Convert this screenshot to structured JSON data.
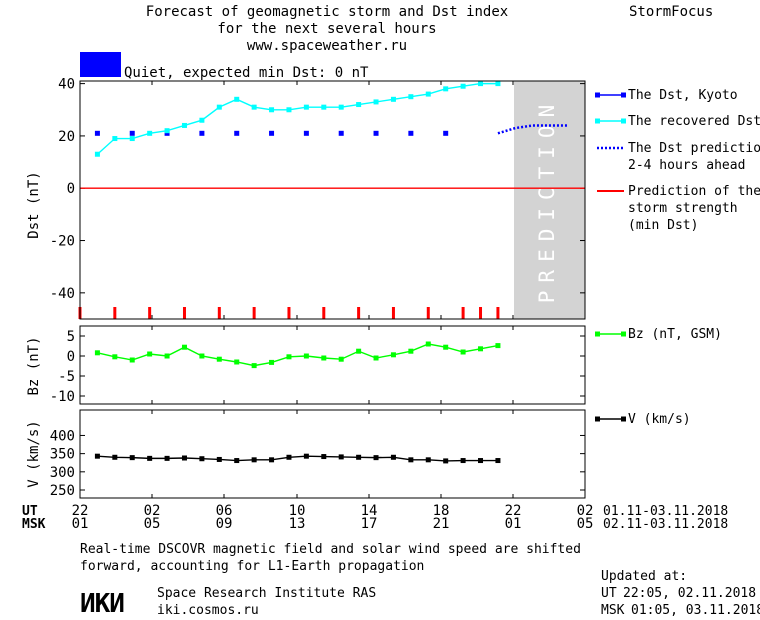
{
  "header": {
    "title_lines": [
      "Forecast of geomagnetic storm and Dst index",
      "for the next several hours",
      "www.spaceweather.ru"
    ],
    "brand": "StormFocus"
  },
  "status": {
    "label": "Quiet, expected min Dst: 0 nT",
    "color": "#0000ff"
  },
  "prediction_label": "PREDICTION",
  "legends": {
    "dst": [
      {
        "key": "kyoto",
        "lines": [
          "The Dst, Kyoto"
        ],
        "color": "#0000ff",
        "style": "square-line"
      },
      {
        "key": "recovered",
        "lines": [
          "The recovered Dst"
        ],
        "color": "#00ffff",
        "style": "square-line"
      },
      {
        "key": "prediction",
        "lines": [
          "The Dst prediction",
          "2-4 hours ahead"
        ],
        "color": "#0000ff",
        "style": "dotted"
      },
      {
        "key": "storm",
        "lines": [
          "Prediction of the",
          "storm strength",
          "(min Dst)"
        ],
        "color": "#ff0000",
        "style": "solid"
      }
    ],
    "bz": {
      "lines": [
        "Bz (nT, GSM)"
      ],
      "color": "#00ff00"
    },
    "v": {
      "lines": [
        "V (km/s)"
      ],
      "color": "#000000"
    }
  },
  "time_axis": {
    "ut_label": "UT",
    "msk_label": "MSK",
    "ut_ticks": [
      "22",
      "02",
      "06",
      "10",
      "14",
      "18",
      "22",
      "02"
    ],
    "msk_ticks": [
      "01",
      "05",
      "09",
      "13",
      "17",
      "21",
      "01",
      "05"
    ],
    "ut_range": "01.11-03.11.2018",
    "msk_range": "02.11-03.11.2018"
  },
  "footer": {
    "note_lines": [
      "Real-time DSCOVR magnetic field and solar wind speed are shifted",
      "forward, accounting for L1-Earth propagation"
    ],
    "logo_text": "ИКИ",
    "institute": "Space Research Institute RAS",
    "site": "iki.cosmos.ru",
    "updated_label": "Updated at:",
    "updated_ut_label": "UT",
    "updated_ut_value": "22:05, 02.11.2018",
    "updated_msk_label": "MSK",
    "updated_msk_value": "01:05, 03.11.2018"
  },
  "chart_data": [
    {
      "type": "line",
      "ylabel": "Dst (nT)",
      "xlim": [
        -1,
        28
      ],
      "ylim": [
        -50,
        41
      ],
      "yticks": [
        40,
        20,
        0,
        -20,
        -40
      ],
      "prediction_start": 23,
      "series": [
        {
          "name": "The Dst, Kyoto",
          "color": "#0000ff",
          "markers_only": true,
          "x": [
            0,
            2,
            4,
            6,
            8,
            10,
            12,
            14,
            16,
            18,
            20
          ],
          "values": [
            21,
            21,
            21,
            21,
            21,
            21,
            21,
            21,
            21,
            21,
            21
          ]
        },
        {
          "name": "The recovered Dst",
          "color": "#00ffff",
          "x": [
            0,
            1,
            2,
            3,
            4,
            5,
            6,
            7,
            8,
            9,
            10,
            11,
            12,
            13,
            14,
            15,
            16,
            17,
            18,
            19,
            20,
            21,
            22,
            23
          ],
          "values": [
            13,
            19,
            19,
            21,
            22,
            24,
            26,
            31,
            34,
            31,
            30,
            30,
            31,
            31,
            31,
            32,
            33,
            34,
            35,
            36,
            38,
            39,
            40,
            40
          ]
        },
        {
          "name": "The Dst prediction 2-4 hours ahead",
          "color": "#0000ff",
          "dotted": true,
          "x": [
            23,
            24,
            25,
            26,
            27
          ],
          "values": [
            21,
            23,
            24,
            24,
            24
          ]
        },
        {
          "name": "Prediction of the storm strength (min Dst)",
          "color": "#ff0000",
          "x": [
            -1,
            28
          ],
          "values": [
            0,
            0
          ]
        }
      ],
      "storm_markers": {
        "color": "#ff0000",
        "x": [
          -1,
          1,
          3,
          5,
          7,
          9,
          11,
          13,
          15,
          17,
          19,
          21,
          22,
          23
        ]
      }
    },
    {
      "type": "line",
      "ylabel": "Bz (nT)",
      "xlim": [
        -1,
        28
      ],
      "ylim": [
        -12,
        7.5
      ],
      "yticks": [
        5,
        0,
        -5,
        -10
      ],
      "series": [
        {
          "name": "Bz (nT, GSM)",
          "color": "#00ff00",
          "x": [
            0,
            1,
            2,
            3,
            4,
            5,
            6,
            7,
            8,
            9,
            10,
            11,
            12,
            13,
            14,
            15,
            16,
            17,
            18,
            19,
            20,
            21,
            22,
            23
          ],
          "values": [
            0.8,
            -0.2,
            -1.0,
            0.5,
            0.0,
            2.2,
            0.0,
            -0.8,
            -1.5,
            -2.4,
            -1.6,
            -0.2,
            0.0,
            -0.5,
            -0.8,
            1.2,
            -0.5,
            0.3,
            1.2,
            3.0,
            2.2,
            1.0,
            1.8,
            2.6
          ]
        }
      ]
    },
    {
      "type": "line",
      "ylabel": "V (km/s)",
      "xlim": [
        -1,
        28
      ],
      "ylim": [
        228,
        470
      ],
      "yticks": [
        400,
        350,
        300,
        250
      ],
      "series": [
        {
          "name": "V (km/s)",
          "color": "#000000",
          "x": [
            0,
            1,
            2,
            3,
            4,
            5,
            6,
            7,
            8,
            9,
            10,
            11,
            12,
            13,
            14,
            15,
            16,
            17,
            18,
            19,
            20,
            21,
            22,
            23
          ],
          "values": [
            343,
            340,
            339,
            337,
            337,
            338,
            336,
            334,
            331,
            333,
            333,
            340,
            343,
            342,
            341,
            340,
            339,
            340,
            333,
            333,
            330,
            331,
            331,
            331
          ]
        }
      ]
    }
  ]
}
